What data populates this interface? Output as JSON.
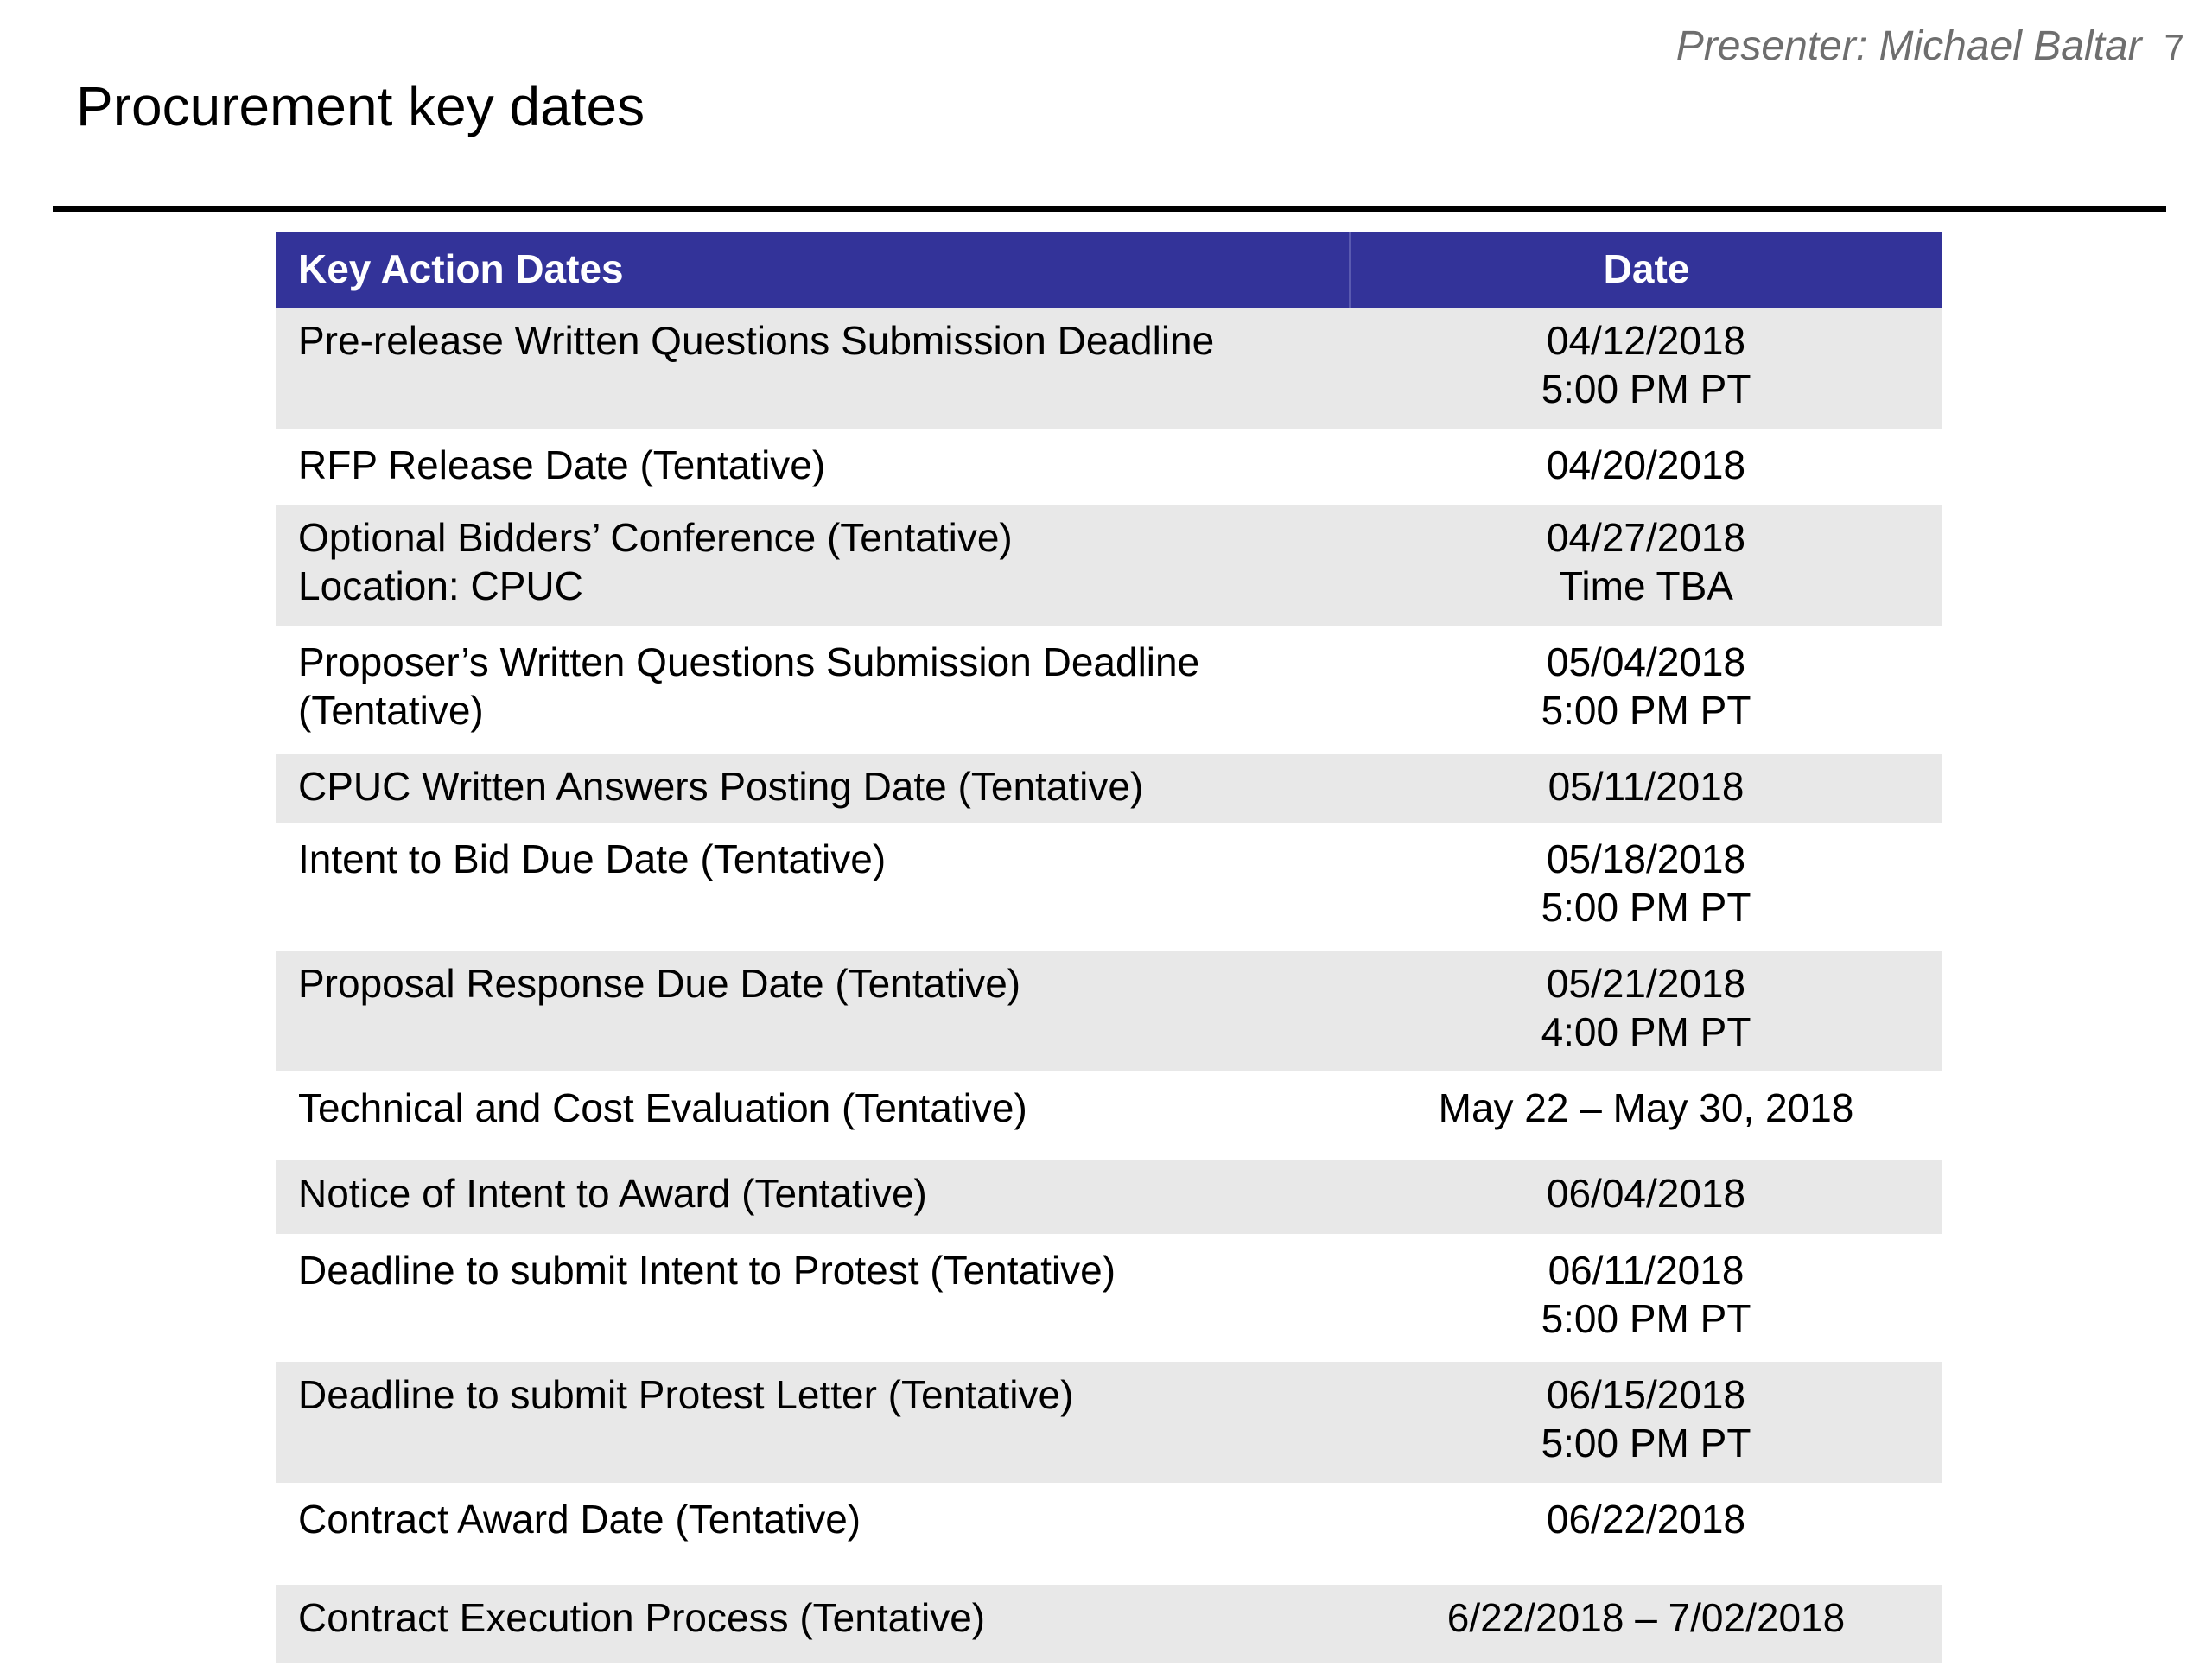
{
  "header": {
    "presenter": "Presenter: Michael Baltar",
    "page_number": "7"
  },
  "slide": {
    "title": "Procurement key dates"
  },
  "table": {
    "columns": [
      "Key Action Dates",
      "Date"
    ],
    "rows": [
      {
        "action": [
          "Pre-release Written Questions Submission Deadline"
        ],
        "date": [
          "04/12/2018",
          "5:00 PM PT"
        ],
        "shaded": true,
        "min_height": 140
      },
      {
        "action": [
          "RFP Release Date (Tentative)"
        ],
        "date": [
          "04/20/2018"
        ],
        "shaded": false,
        "min_height": 80
      },
      {
        "action": [
          "Optional Bidders’ Conference (Tentative)",
          "Location: CPUC"
        ],
        "date": [
          "04/27/2018",
          "Time TBA"
        ],
        "shaded": true,
        "min_height": 140
      },
      {
        "action": [
          "Proposer’s Written Questions Submission Deadline",
          "(Tentative)"
        ],
        "date": [
          "05/04/2018",
          "5:00 PM PT"
        ],
        "shaded": false,
        "min_height": 140
      },
      {
        "action": [
          "CPUC Written Answers Posting Date (Tentative)"
        ],
        "date": [
          "05/11/2018"
        ],
        "shaded": true,
        "min_height": 80
      },
      {
        "action": [
          "Intent to Bid Due Date (Tentative)"
        ],
        "date": [
          "05/18/2018",
          "5:00 PM PT"
        ],
        "shaded": false,
        "min_height": 140
      },
      {
        "action": [
          "Proposal Response Due Date (Tentative)"
        ],
        "date": [
          "05/21/2018",
          "4:00 PM PT"
        ],
        "shaded": true,
        "min_height": 140
      },
      {
        "action": [
          "Technical and Cost Evaluation (Tentative)"
        ],
        "date": [
          "May 22 – May 30, 2018"
        ],
        "shaded": false,
        "min_height": 95
      },
      {
        "action": [
          "Notice of Intent to Award (Tentative)"
        ],
        "date": [
          "06/04/2018"
        ],
        "shaded": true,
        "min_height": 85
      },
      {
        "action": [
          "Deadline to submit Intent to Protest (Tentative)"
        ],
        "date": [
          "06/11/2018",
          "5:00 PM PT"
        ],
        "shaded": false,
        "min_height": 140
      },
      {
        "action": [
          "Deadline to submit Protest Letter (Tentative)"
        ],
        "date": [
          "06/15/2018",
          "5:00 PM PT"
        ],
        "shaded": true,
        "min_height": 140
      },
      {
        "action": [
          "Contract Award Date (Tentative)"
        ],
        "date": [
          "06/22/2018"
        ],
        "shaded": false,
        "min_height": 110
      },
      {
        "action": [
          "Contract Execution Process (Tentative)"
        ],
        "date": [
          "6/22/2018 – 7/02/2018"
        ],
        "shaded": true,
        "min_height": 90
      }
    ]
  }
}
